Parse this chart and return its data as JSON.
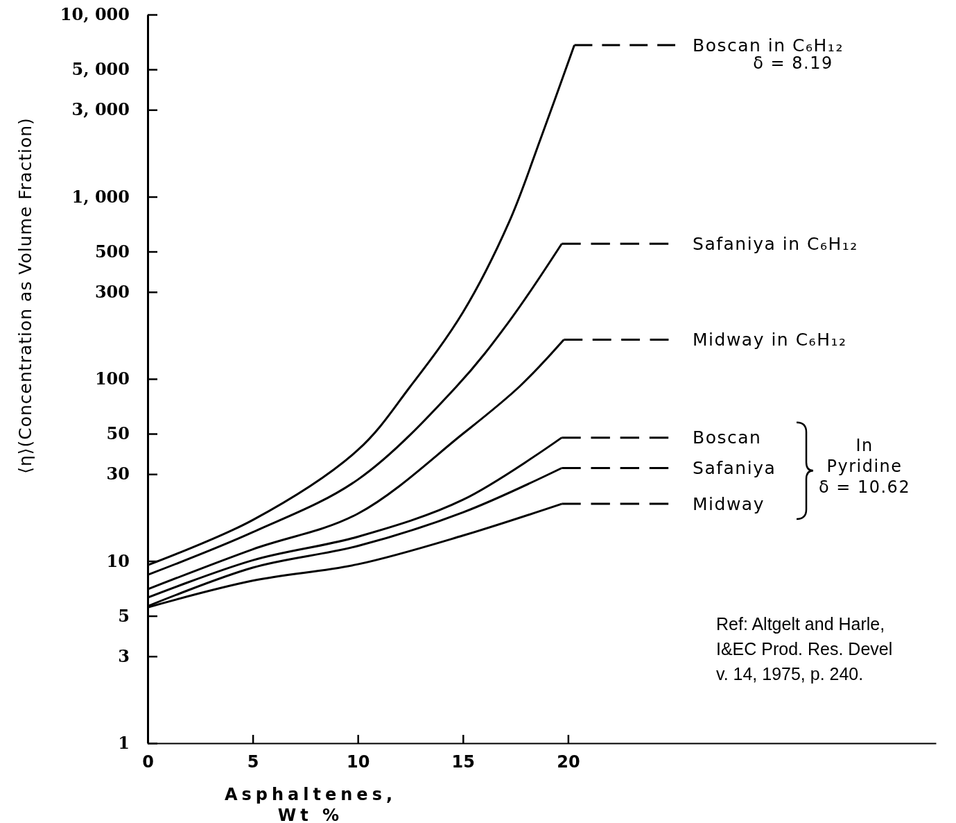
{
  "chart_data": {
    "type": "line",
    "xlabel": "Asphaltenes,\nWt %",
    "ylabel": "⟨η⟩(Concentration as Volume Fraction)",
    "log": true,
    "xlim": [
      0,
      37.5
    ],
    "xticks": [
      0,
      5,
      10,
      15,
      20
    ],
    "ylim": [
      1,
      10000
    ],
    "yticks": [
      1,
      3,
      5,
      10,
      30,
      50,
      100,
      300,
      500,
      {
        "value": 1000,
        "label": "1, 000"
      },
      {
        "value": 3000,
        "label": "3, 000"
      },
      {
        "value": 5000,
        "label": "5, 000"
      },
      {
        "value": 10000,
        "label": "10, 000"
      }
    ],
    "grid": false,
    "marker": "none",
    "series": [
      {
        "name": "Boscan in C₆H₁₂",
        "color": "#000000",
        "x": [
          0,
          5,
          10,
          12.5,
          15,
          17.2,
          18.7,
          20.3
        ],
        "values": [
          9.5,
          16.8,
          40.7,
          91,
          232,
          728,
          2090,
          6800
        ]
      },
      {
        "color": "#000000",
        "line_style": "dashed",
        "x": [
          20.3,
          25.1
        ],
        "values": [
          6800,
          6800
        ]
      },
      {
        "name": "Safaniya in C₆H₁₂",
        "color": "#000000",
        "x": [
          0,
          5,
          10,
          14.7,
          17.2,
          19.7
        ],
        "values": [
          8.4,
          14.4,
          28,
          91,
          207,
          552
        ]
      },
      {
        "color": "#000000",
        "line_style": "dashed",
        "x": [
          19.7,
          24.8
        ],
        "values": [
          552,
          552
        ]
      },
      {
        "name": "Midway in C₆H₁₂",
        "color": "#000000",
        "x": [
          0,
          5,
          10,
          15,
          17.7,
          19.8
        ],
        "values": [
          7,
          11.6,
          18.2,
          50,
          91,
          164
        ]
      },
      {
        "color": "#000000",
        "line_style": "dashed",
        "x": [
          19.8,
          24.8
        ],
        "values": [
          164,
          164
        ]
      },
      {
        "name": "Boscan",
        "color": "#000000",
        "x": [
          0,
          5,
          10,
          15,
          19.7
        ],
        "values": [
          6.3,
          10.1,
          13.6,
          21.7,
          47.6
        ]
      },
      {
        "color": "#000000",
        "line_style": "dashed",
        "x": [
          19.7,
          24.8
        ],
        "values": [
          47.6,
          47.6
        ]
      },
      {
        "name": "Safaniya",
        "color": "#000000",
        "x": [
          0,
          5,
          10,
          15,
          19.7
        ],
        "values": [
          5.65,
          9.2,
          12.1,
          18.5,
          32.4
        ]
      },
      {
        "color": "#000000",
        "line_style": "dashed",
        "x": [
          19.7,
          24.8
        ],
        "values": [
          32.4,
          32.4
        ]
      },
      {
        "name": "Midway",
        "color": "#000000",
        "x": [
          0,
          5,
          10,
          15,
          19.7
        ],
        "values": [
          5.57,
          7.8,
          9.6,
          13.8,
          20.6
        ]
      },
      {
        "color": "#000000",
        "line_style": "dashed",
        "x": [
          19.7,
          24.8
        ],
        "values": [
          20.6,
          20.6
        ]
      }
    ],
    "annotations": [
      "δ = 8.19",
      "In\nPyridine\nδ = 10.62",
      "Ref:  Altgelt and Harle,\nI&EC Prod. Res. Devel\nv. 14, 1975, p. 240."
    ]
  }
}
